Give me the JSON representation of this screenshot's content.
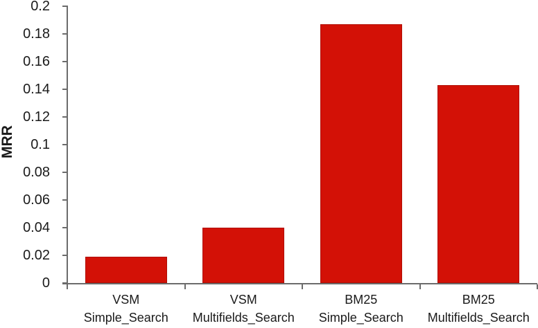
{
  "chart_data": {
    "type": "bar",
    "title": "",
    "xlabel": "",
    "ylabel": "MRR",
    "categories": [
      "VSM Simple_Search",
      "VSM Multifields_Search",
      "BM25 Simple_Search",
      "BM25 Multifields_Search"
    ],
    "category_label_lines": [
      [
        "VSM",
        "Simple_Search"
      ],
      [
        "VSM",
        "Multifields_Search"
      ],
      [
        "BM25",
        "Simple_Search"
      ],
      [
        "BM25",
        "Multifields_Search"
      ]
    ],
    "values": [
      0.019,
      0.04,
      0.187,
      0.143
    ],
    "ylim": [
      0,
      0.2
    ],
    "ytick_step": 0.02,
    "ytick_labels": [
      "0",
      "0.02",
      "0.04",
      "0.06",
      "0.08",
      "0.1",
      "0.12",
      "0.14",
      "0.16",
      "0.18",
      "0.2"
    ],
    "grid": false,
    "legend": null,
    "colors": {
      "bar_fill": "#d31106",
      "bar_border": "#b00e04",
      "axis": "#6b6b6b",
      "text": "#1a1a1a",
      "background": "#ffffff"
    }
  }
}
